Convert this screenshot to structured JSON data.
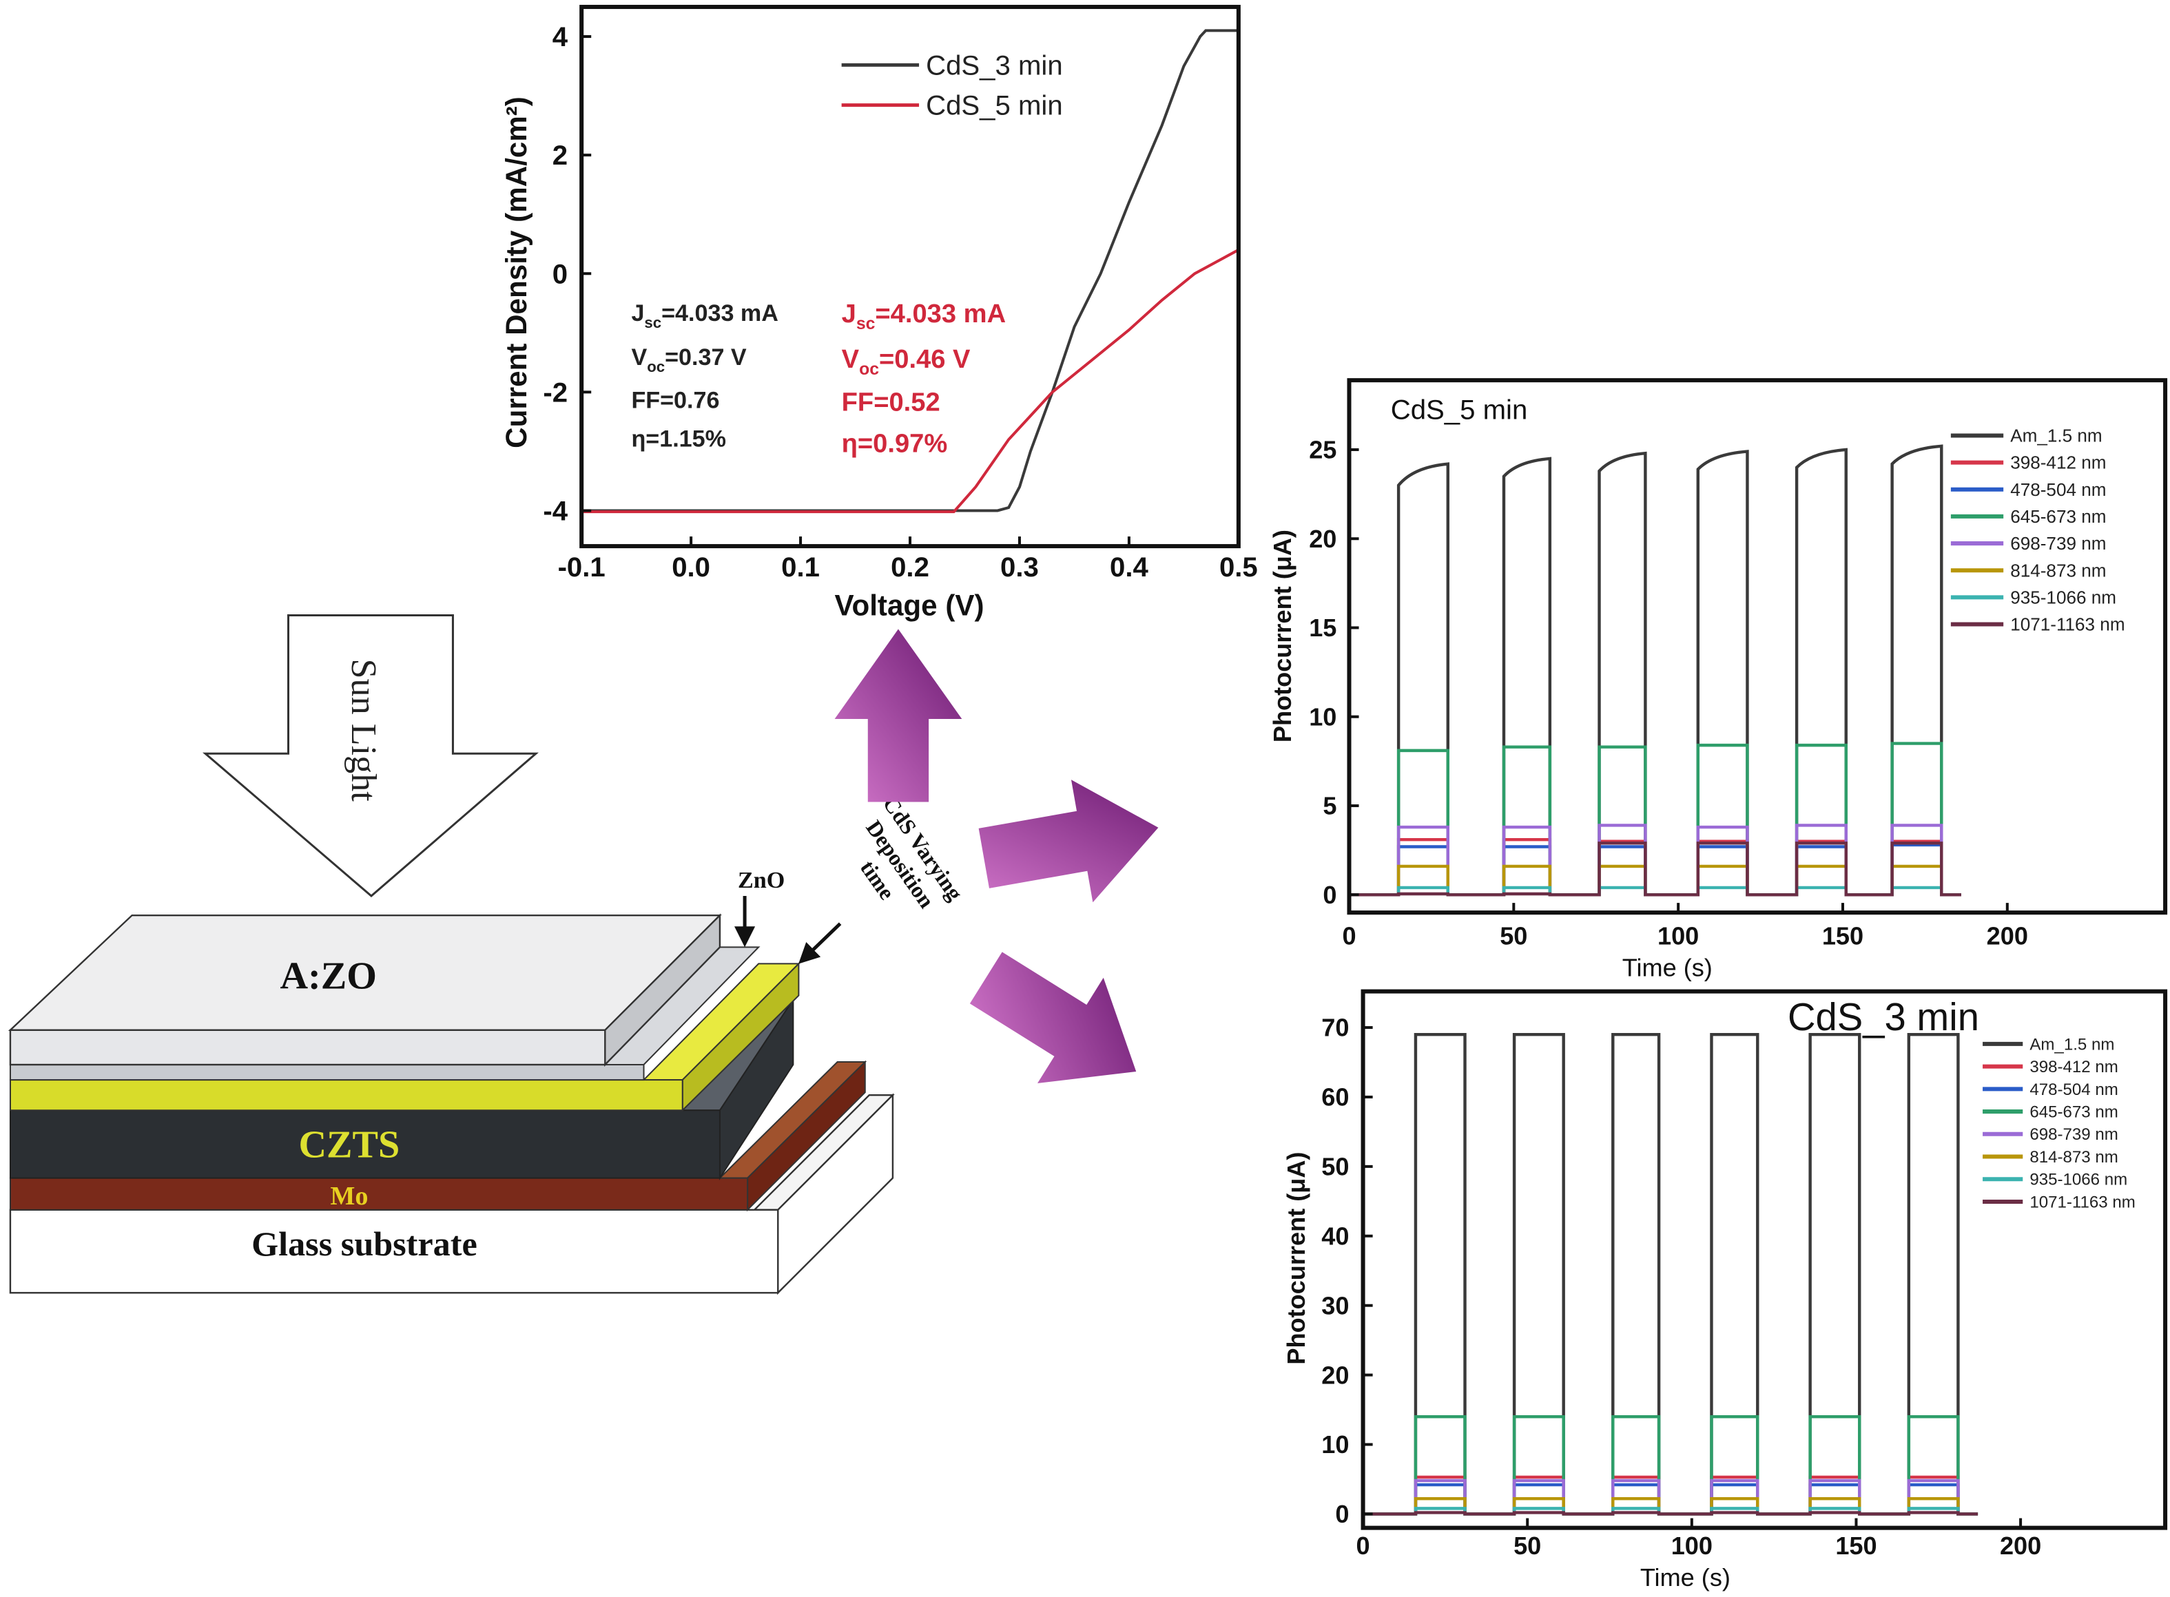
{
  "diagram": {
    "sun_light": "Sun Light",
    "azo": "A:ZO",
    "zno": "ZnO",
    "czts": "CZTS",
    "mo": "Mo",
    "glass": "Glass substrate",
    "cds_note": [
      "CdS Varying",
      "Deposition",
      "time"
    ],
    "arrow_color": "#8a2a8c"
  },
  "chart_data": [
    {
      "type": "line",
      "title": "",
      "xlabel": "Voltage (V)",
      "ylabel": "Current Density (mA/cm²)",
      "xlim": [
        -0.1,
        0.5
      ],
      "ylim": [
        -4.6,
        4.5
      ],
      "xticks": [
        "-0.1",
        "0.0",
        "0.1",
        "0.2",
        "0.3",
        "0.4",
        "0.5"
      ],
      "yticks": [
        "-4",
        "-2",
        "0",
        "2",
        "4"
      ],
      "legend": "top-right",
      "series": [
        {
          "name": "CdS_3 min",
          "color": "#3a3a3a",
          "x": [
            -0.1,
            0.28,
            0.29,
            0.3,
            0.31,
            0.33,
            0.35,
            0.374,
            0.4,
            0.43,
            0.45,
            0.465,
            0.47,
            0.5
          ],
          "y": [
            -4.0,
            -4.0,
            -3.95,
            -3.6,
            -3.0,
            -2.0,
            -0.9,
            0.0,
            1.2,
            2.5,
            3.5,
            4.0,
            4.1,
            4.1
          ]
        },
        {
          "name": "CdS_5 min",
          "color": "#d0283c",
          "x": [
            -0.1,
            0.24,
            0.26,
            0.29,
            0.33,
            0.37,
            0.4,
            0.43,
            0.46,
            0.5
          ],
          "y": [
            -4.02,
            -4.02,
            -3.6,
            -2.8,
            -2.0,
            -1.4,
            -0.95,
            -0.45,
            0.0,
            0.4
          ]
        }
      ],
      "annotations": [
        {
          "color": "#222222",
          "lines": [
            {
              "main": "J",
              "sub": "sc",
              "rest": "=4.033 mA"
            },
            {
              "main": "V",
              "sub": "oc",
              "rest": "=0.37 V"
            },
            {
              "main": "FF=0.76",
              "sub": "",
              "rest": ""
            },
            {
              "main": "η=1.15%",
              "sub": "",
              "rest": ""
            }
          ]
        },
        {
          "color": "#d0283c",
          "lines": [
            {
              "main": "J",
              "sub": "sc",
              "rest": "=4.033 mA"
            },
            {
              "main": "V",
              "sub": "oc",
              "rest": "=0.46 V"
            },
            {
              "main": "FF=0.52",
              "sub": "",
              "rest": ""
            },
            {
              "main": "η=0.97%",
              "sub": "",
              "rest": ""
            }
          ]
        }
      ]
    },
    {
      "type": "line",
      "title": "CdS_5 min",
      "xlabel": "Time (s)",
      "ylabel": "Photocurrent (μA)",
      "xlim": [
        0,
        248
      ],
      "ylim": [
        -1,
        28.9
      ],
      "xticks": [
        "0",
        "50",
        "100",
        "150",
        "200"
      ],
      "yticks": [
        "0",
        "5",
        "10",
        "15",
        "20",
        "25"
      ],
      "legend": "top-right",
      "on_intervals_s": [
        [
          15,
          30
        ],
        [
          47,
          61
        ],
        [
          76,
          90
        ],
        [
          106,
          121
        ],
        [
          136,
          151
        ],
        [
          165,
          180
        ]
      ],
      "series": [
        {
          "name": "Am_1.5 nm",
          "color": "#3a3a3a",
          "levels": [
            [
              23.0,
              24.2
            ],
            [
              23.5,
              24.5
            ],
            [
              23.8,
              24.8
            ],
            [
              23.9,
              24.9
            ],
            [
              24.0,
              25.0
            ],
            [
              24.2,
              25.2
            ]
          ]
        },
        {
          "name": "398-412 nm",
          "color": "#d6364a",
          "levels": [
            3.1,
            3.1,
            3.0,
            3.0,
            3.0,
            3.0
          ]
        },
        {
          "name": "478-504 nm",
          "color": "#2a5cc8",
          "levels": [
            2.7,
            2.7,
            2.7,
            2.7,
            2.7,
            2.8
          ]
        },
        {
          "name": "645-673 nm",
          "color": "#2e9e6a",
          "levels": [
            8.1,
            8.3,
            8.3,
            8.4,
            8.4,
            8.5
          ]
        },
        {
          "name": "698-739 nm",
          "color": "#9b6bd6",
          "levels": [
            3.8,
            3.8,
            3.9,
            3.8,
            3.9,
            3.9
          ]
        },
        {
          "name": "814-873 nm",
          "color": "#b8960a",
          "levels": [
            1.6,
            1.6,
            1.6,
            1.6,
            1.6,
            1.6
          ]
        },
        {
          "name": "935-1066 nm",
          "color": "#3bb3b0",
          "levels": [
            0.4,
            0.4,
            0.4,
            0.4,
            0.4,
            0.4
          ]
        },
        {
          "name": "1071-1163 nm",
          "color": "#6b2d45",
          "levels": [
            0.05,
            0.05,
            2.9,
            2.9,
            2.9,
            2.9
          ]
        }
      ]
    },
    {
      "type": "line",
      "title": "CdS_3 min",
      "xlabel": "Time (s)",
      "ylabel": "Photocurrent (μA)",
      "xlim": [
        0,
        244
      ],
      "ylim": [
        -2,
        75.2
      ],
      "xticks": [
        "0",
        "50",
        "100",
        "150",
        "200"
      ],
      "yticks": [
        "0",
        "10",
        "20",
        "30",
        "40",
        "50",
        "60",
        "70"
      ],
      "legend": "top-right",
      "on_intervals_s": [
        [
          16,
          31
        ],
        [
          46,
          61
        ],
        [
          76,
          90
        ],
        [
          106,
          120
        ],
        [
          136,
          151
        ],
        [
          166,
          181
        ]
      ],
      "series": [
        {
          "name": "Am_1.5 nm",
          "color": "#3a3a3a",
          "levels": [
            69,
            69,
            69,
            69,
            69,
            69
          ]
        },
        {
          "name": "398-412 nm",
          "color": "#d6364a",
          "levels": [
            5.3,
            5.3,
            5.3,
            5.3,
            5.3,
            5.3
          ]
        },
        {
          "name": "478-504 nm",
          "color": "#2a5cc8",
          "levels": [
            4.2,
            4.2,
            4.2,
            4.2,
            4.2,
            4.2
          ]
        },
        {
          "name": "645-673 nm",
          "color": "#2e9e6a",
          "levels": [
            14,
            14,
            14,
            14,
            14,
            14
          ]
        },
        {
          "name": "698-739 nm",
          "color": "#9b6bd6",
          "levels": [
            4.8,
            4.8,
            4.8,
            4.8,
            4.8,
            4.8
          ]
        },
        {
          "name": "814-873 nm",
          "color": "#b8960a",
          "levels": [
            2.2,
            2.2,
            2.2,
            2.2,
            2.2,
            2.2
          ]
        },
        {
          "name": "935-1066 nm",
          "color": "#3bb3b0",
          "levels": [
            0.8,
            0.8,
            0.8,
            0.8,
            0.8,
            0.8
          ]
        },
        {
          "name": "1071-1163 nm",
          "color": "#6b2d45",
          "levels": [
            0.2,
            0.2,
            0.2,
            0.2,
            0.2,
            0.2
          ]
        }
      ]
    }
  ]
}
